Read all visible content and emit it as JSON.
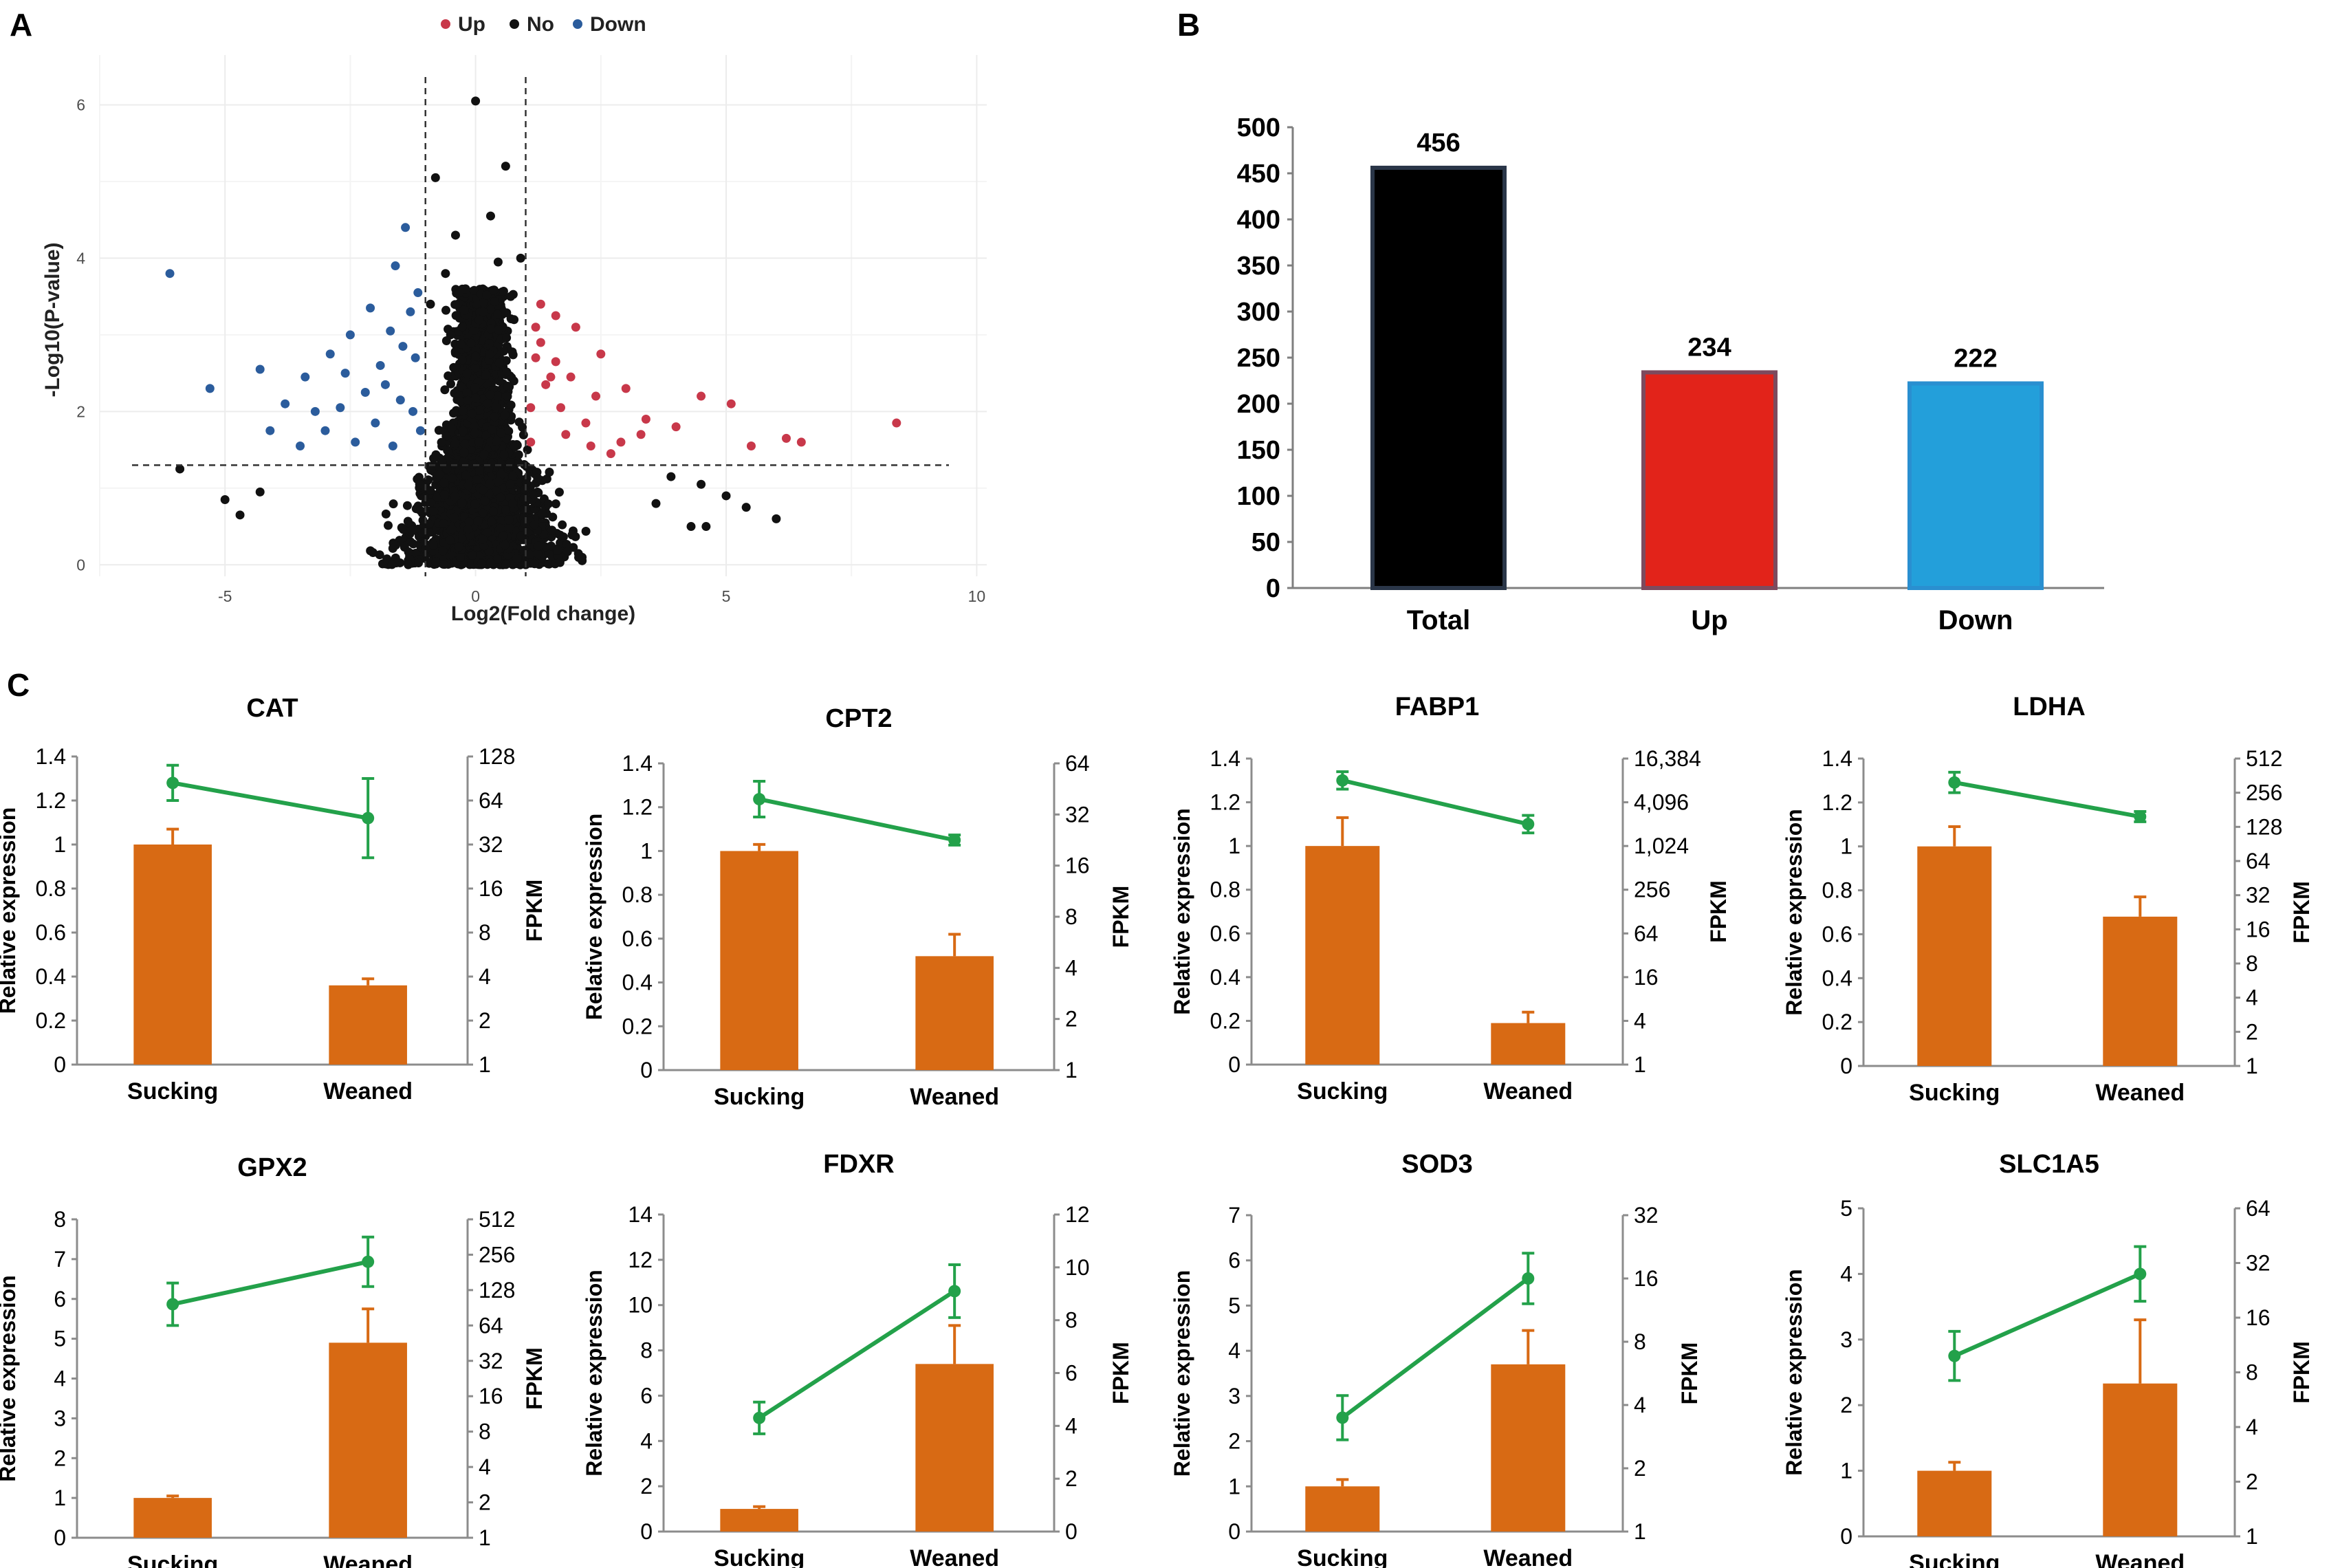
{
  "panels": {
    "a_label": "A",
    "b_label": "B",
    "c_label": "C"
  },
  "colors": {
    "up": "#c8384a",
    "no": "#111111",
    "down": "#2b5c9c",
    "bar_orange": "#d86a14",
    "line_green": "#23a14a",
    "bar_total": "#000000",
    "bar_up": "#e2231a",
    "bar_down": "#239fda"
  },
  "chart_data": [
    {
      "id": "volcano",
      "type": "scatter",
      "title": "",
      "xlabel": "Log2(Fold change)",
      "ylabel": "-Log10(P-value)",
      "xlim": [
        -7.5,
        10.2
      ],
      "ylim": [
        -0.15,
        6.65
      ],
      "xticks": [
        -5,
        0,
        5,
        10
      ],
      "yticks": [
        0,
        2,
        4,
        6
      ],
      "thresholds": {
        "log2fc": [
          -1,
          1
        ],
        "neglog10p": 1.3
      },
      "legend": [
        "Up",
        "No",
        "Down"
      ],
      "legend_position": "top",
      "up_points": [
        [
          8.4,
          1.85
        ],
        [
          6.5,
          1.6
        ],
        [
          6.2,
          1.65
        ],
        [
          5.5,
          1.55
        ],
        [
          5.1,
          2.1
        ],
        [
          4.5,
          2.2
        ],
        [
          3.4,
          1.9
        ],
        [
          3.0,
          2.3
        ],
        [
          2.5,
          2.75
        ],
        [
          2.0,
          3.1
        ],
        [
          1.6,
          3.25
        ],
        [
          1.4,
          2.35
        ],
        [
          1.3,
          2.9
        ],
        [
          1.7,
          2.05
        ],
        [
          2.2,
          1.85
        ],
        [
          2.7,
          1.45
        ],
        [
          1.1,
          1.6
        ],
        [
          1.2,
          2.7
        ],
        [
          1.5,
          2.45
        ],
        [
          1.8,
          1.7
        ],
        [
          2.4,
          2.2
        ],
        [
          3.3,
          1.7
        ],
        [
          1.3,
          3.4
        ],
        [
          1.6,
          2.65
        ],
        [
          2.3,
          1.55
        ],
        [
          2.9,
          1.6
        ],
        [
          1.1,
          2.05
        ],
        [
          1.9,
          2.45
        ],
        [
          4.0,
          1.8
        ],
        [
          1.2,
          3.1
        ]
      ],
      "down_points": [
        [
          -6.1,
          3.8
        ],
        [
          -5.3,
          2.3
        ],
        [
          -4.3,
          2.55
        ],
        [
          -3.8,
          2.1
        ],
        [
          -3.4,
          2.45
        ],
        [
          -2.9,
          2.75
        ],
        [
          -2.5,
          3.0
        ],
        [
          -2.1,
          3.35
        ],
        [
          -1.6,
          3.9
        ],
        [
          -1.4,
          4.4
        ],
        [
          -3.0,
          1.75
        ],
        [
          -2.7,
          2.05
        ],
        [
          -2.2,
          2.25
        ],
        [
          -1.9,
          2.6
        ],
        [
          -1.7,
          3.05
        ],
        [
          -1.5,
          2.15
        ],
        [
          -1.3,
          3.3
        ],
        [
          -1.2,
          2.7
        ],
        [
          -1.1,
          1.75
        ],
        [
          -3.5,
          1.55
        ],
        [
          -2.4,
          1.6
        ],
        [
          -2.0,
          1.85
        ],
        [
          -1.8,
          2.35
        ],
        [
          -1.25,
          2.0
        ],
        [
          -4.1,
          1.75
        ],
        [
          -2.6,
          2.5
        ],
        [
          -1.45,
          2.85
        ],
        [
          -1.15,
          3.55
        ],
        [
          -3.2,
          2.0
        ],
        [
          -1.65,
          1.55
        ]
      ],
      "no_top_points": [
        [
          0.0,
          6.05
        ],
        [
          -0.8,
          5.05
        ],
        [
          0.6,
          5.2
        ],
        [
          0.3,
          4.55
        ],
        [
          -0.4,
          4.3
        ],
        [
          0.9,
          4.0
        ],
        [
          -0.6,
          3.8
        ],
        [
          0.45,
          3.95
        ],
        [
          -0.2,
          3.6
        ],
        [
          0.7,
          3.5
        ],
        [
          -0.9,
          3.4
        ],
        [
          0.15,
          3.3
        ],
        [
          -5.9,
          1.25
        ],
        [
          -5.0,
          0.85
        ],
        [
          -4.7,
          0.65
        ],
        [
          -4.3,
          0.95
        ],
        [
          6.0,
          0.6
        ],
        [
          5.4,
          0.75
        ],
        [
          5.0,
          0.9
        ],
        [
          4.5,
          1.05
        ],
        [
          4.3,
          0.5
        ],
        [
          4.6,
          0.5
        ],
        [
          3.9,
          1.15
        ],
        [
          3.6,
          0.8
        ]
      ],
      "no_core": {
        "upper_width_log2fc": 1.0,
        "lower_width_log2fc": 2.8,
        "max_neglog10p": 3.6
      }
    },
    {
      "id": "deg_counts",
      "type": "bar",
      "categories": [
        "Total",
        "Up",
        "Down"
      ],
      "values": [
        456,
        234,
        222
      ],
      "data_labels": [
        "456",
        "234",
        "222"
      ],
      "title": "",
      "xlabel": "",
      "ylabel": "",
      "ylim": [
        0,
        500
      ],
      "yticks": [
        "0",
        "50",
        "100",
        "150",
        "200",
        "250",
        "300",
        "350",
        "400",
        "450",
        "500"
      ]
    },
    {
      "id": "CAT",
      "type": "bar+line",
      "title": "CAT",
      "categories": [
        "Sucking",
        "Weaned"
      ],
      "bar_series": {
        "name": "Relative expression",
        "values": [
          1.0,
          0.36
        ],
        "errors": [
          0.07,
          0.03
        ]
      },
      "line_series": {
        "name": "FPKM",
        "log2_values": [
          6.4,
          5.6
        ],
        "log2_errors": [
          0.4,
          0.9
        ]
      },
      "left_yticks": [
        "0",
        "0.2",
        "0.4",
        "0.6",
        "0.8",
        "1",
        "1.2",
        "1.4"
      ],
      "left_max": 1.4,
      "right_yticks": [
        "1",
        "2",
        "4",
        "8",
        "16",
        "32",
        "64",
        "128"
      ],
      "ylabel_left": "Relative expression",
      "ylabel_right": "FPKM"
    },
    {
      "id": "CPT2",
      "type": "bar+line",
      "title": "CPT2",
      "categories": [
        "Sucking",
        "Weaned"
      ],
      "bar_series": {
        "name": "Relative expression",
        "values": [
          1.0,
          0.52
        ],
        "errors": [
          0.03,
          0.1
        ]
      },
      "line_series": {
        "name": "FPKM",
        "log2_values": [
          5.3,
          4.5
        ],
        "log2_errors": [
          0.35,
          0.1
        ]
      },
      "left_yticks": [
        "0",
        "0.2",
        "0.4",
        "0.6",
        "0.8",
        "1",
        "1.2",
        "1.4"
      ],
      "left_max": 1.4,
      "right_yticks": [
        "1",
        "2",
        "4",
        "8",
        "16",
        "32",
        "64"
      ],
      "ylabel_left": "Relative expression",
      "ylabel_right": "FPKM"
    },
    {
      "id": "FABP1",
      "type": "bar+line",
      "title": "FABP1",
      "categories": [
        "Sucking",
        "Weaned"
      ],
      "bar_series": {
        "name": "Relative expression",
        "values": [
          1.0,
          0.19
        ],
        "errors": [
          0.13,
          0.05
        ]
      },
      "line_series": {
        "name": "FPKM",
        "log2_values": [
          13.0,
          11.0
        ],
        "log2_errors": [
          0.4,
          0.4
        ]
      },
      "left_yticks": [
        "0",
        "0.2",
        "0.4",
        "0.6",
        "0.8",
        "1",
        "1.2",
        "1.4"
      ],
      "left_max": 1.4,
      "right_yticks": [
        "1",
        "4",
        "16",
        "64",
        "256",
        "1,024",
        "4,096",
        "16,384"
      ],
      "ylabel_left": "Relative expression",
      "ylabel_right": "FPKM"
    },
    {
      "id": "LDHA",
      "type": "bar+line",
      "title": "LDHA",
      "categories": [
        "Sucking",
        "Weaned"
      ],
      "bar_series": {
        "name": "Relative expression",
        "values": [
          1.0,
          0.68
        ],
        "errors": [
          0.09,
          0.09
        ]
      },
      "line_series": {
        "name": "FPKM",
        "log2_values": [
          8.3,
          7.3
        ],
        "log2_errors": [
          0.3,
          0.15
        ]
      },
      "left_yticks": [
        "0",
        "0.2",
        "0.4",
        "0.6",
        "0.8",
        "1",
        "1.2",
        "1.4"
      ],
      "left_max": 1.4,
      "right_yticks": [
        "1",
        "2",
        "4",
        "8",
        "16",
        "32",
        "64",
        "128",
        "256",
        "512"
      ],
      "ylabel_left": "Relative expression",
      "ylabel_right": "FPKM"
    },
    {
      "id": "GPX2",
      "type": "bar+line",
      "title": "GPX2",
      "categories": [
        "Sucking",
        "Weaned"
      ],
      "bar_series": {
        "name": "Relative expression",
        "values": [
          1.0,
          4.9
        ],
        "errors": [
          0.05,
          0.85
        ]
      },
      "line_series": {
        "name": "FPKM",
        "log2_values": [
          6.6,
          7.8
        ],
        "log2_errors": [
          0.6,
          0.7
        ]
      },
      "left_yticks": [
        "0",
        "1",
        "2",
        "3",
        "4",
        "5",
        "6",
        "7",
        "8"
      ],
      "left_max": 8,
      "right_yticks": [
        "1",
        "2",
        "4",
        "8",
        "16",
        "32",
        "64",
        "128",
        "256",
        "512"
      ],
      "ylabel_left": "Relative expression",
      "ylabel_right": "FPKM"
    },
    {
      "id": "FDXR",
      "type": "bar+line",
      "title": "FDXR",
      "categories": [
        "Sucking",
        "Weaned"
      ],
      "bar_series": {
        "name": "Relative expression",
        "values": [
          1.0,
          7.4
        ],
        "errors": [
          0.1,
          1.7
        ]
      },
      "line_series": {
        "name": "FPKM",
        "values": [
          4.3,
          9.1
        ],
        "errors": [
          0.6,
          1.0
        ]
      },
      "left_yticks": [
        "0",
        "2",
        "4",
        "6",
        "8",
        "10",
        "12",
        "14"
      ],
      "left_max": 14,
      "right_yticks": [
        "0",
        "2",
        "4",
        "6",
        "8",
        "10",
        "12"
      ],
      "right_max": 12,
      "ylabel_left": "Relative expression",
      "ylabel_right": "FPKM"
    },
    {
      "id": "SOD3",
      "type": "bar+line",
      "title": "SOD3",
      "categories": [
        "Sucking",
        "Weaned"
      ],
      "bar_series": {
        "name": "Relative expression",
        "values": [
          1.0,
          3.7
        ],
        "errors": [
          0.15,
          0.75
        ]
      },
      "line_series": {
        "name": "FPKM",
        "log2_values": [
          1.8,
          4.0
        ],
        "log2_errors": [
          0.35,
          0.4
        ]
      },
      "left_yticks": [
        "0",
        "1",
        "2",
        "3",
        "4",
        "5",
        "6",
        "7"
      ],
      "left_max": 7,
      "right_yticks": [
        "1",
        "2",
        "4",
        "8",
        "16",
        "32"
      ],
      "ylabel_left": "Relative expression",
      "ylabel_right": "FPKM"
    },
    {
      "id": "SLC1A5",
      "type": "bar+line",
      "title": "SLC1A5",
      "categories": [
        "Sucking",
        "Weaned"
      ],
      "bar_series": {
        "name": "Relative expression",
        "values": [
          1.0,
          2.33
        ],
        "errors": [
          0.13,
          0.97
        ]
      },
      "line_series": {
        "name": "FPKM",
        "log2_values": [
          3.3,
          4.8
        ],
        "log2_errors": [
          0.45,
          0.5
        ]
      },
      "left_yticks": [
        "0",
        "1",
        "2",
        "3",
        "4",
        "5"
      ],
      "left_max": 5,
      "right_yticks": [
        "1",
        "2",
        "4",
        "8",
        "16",
        "32",
        "64"
      ],
      "ylabel_left": "Relative expression",
      "ylabel_right": "FPKM"
    }
  ]
}
